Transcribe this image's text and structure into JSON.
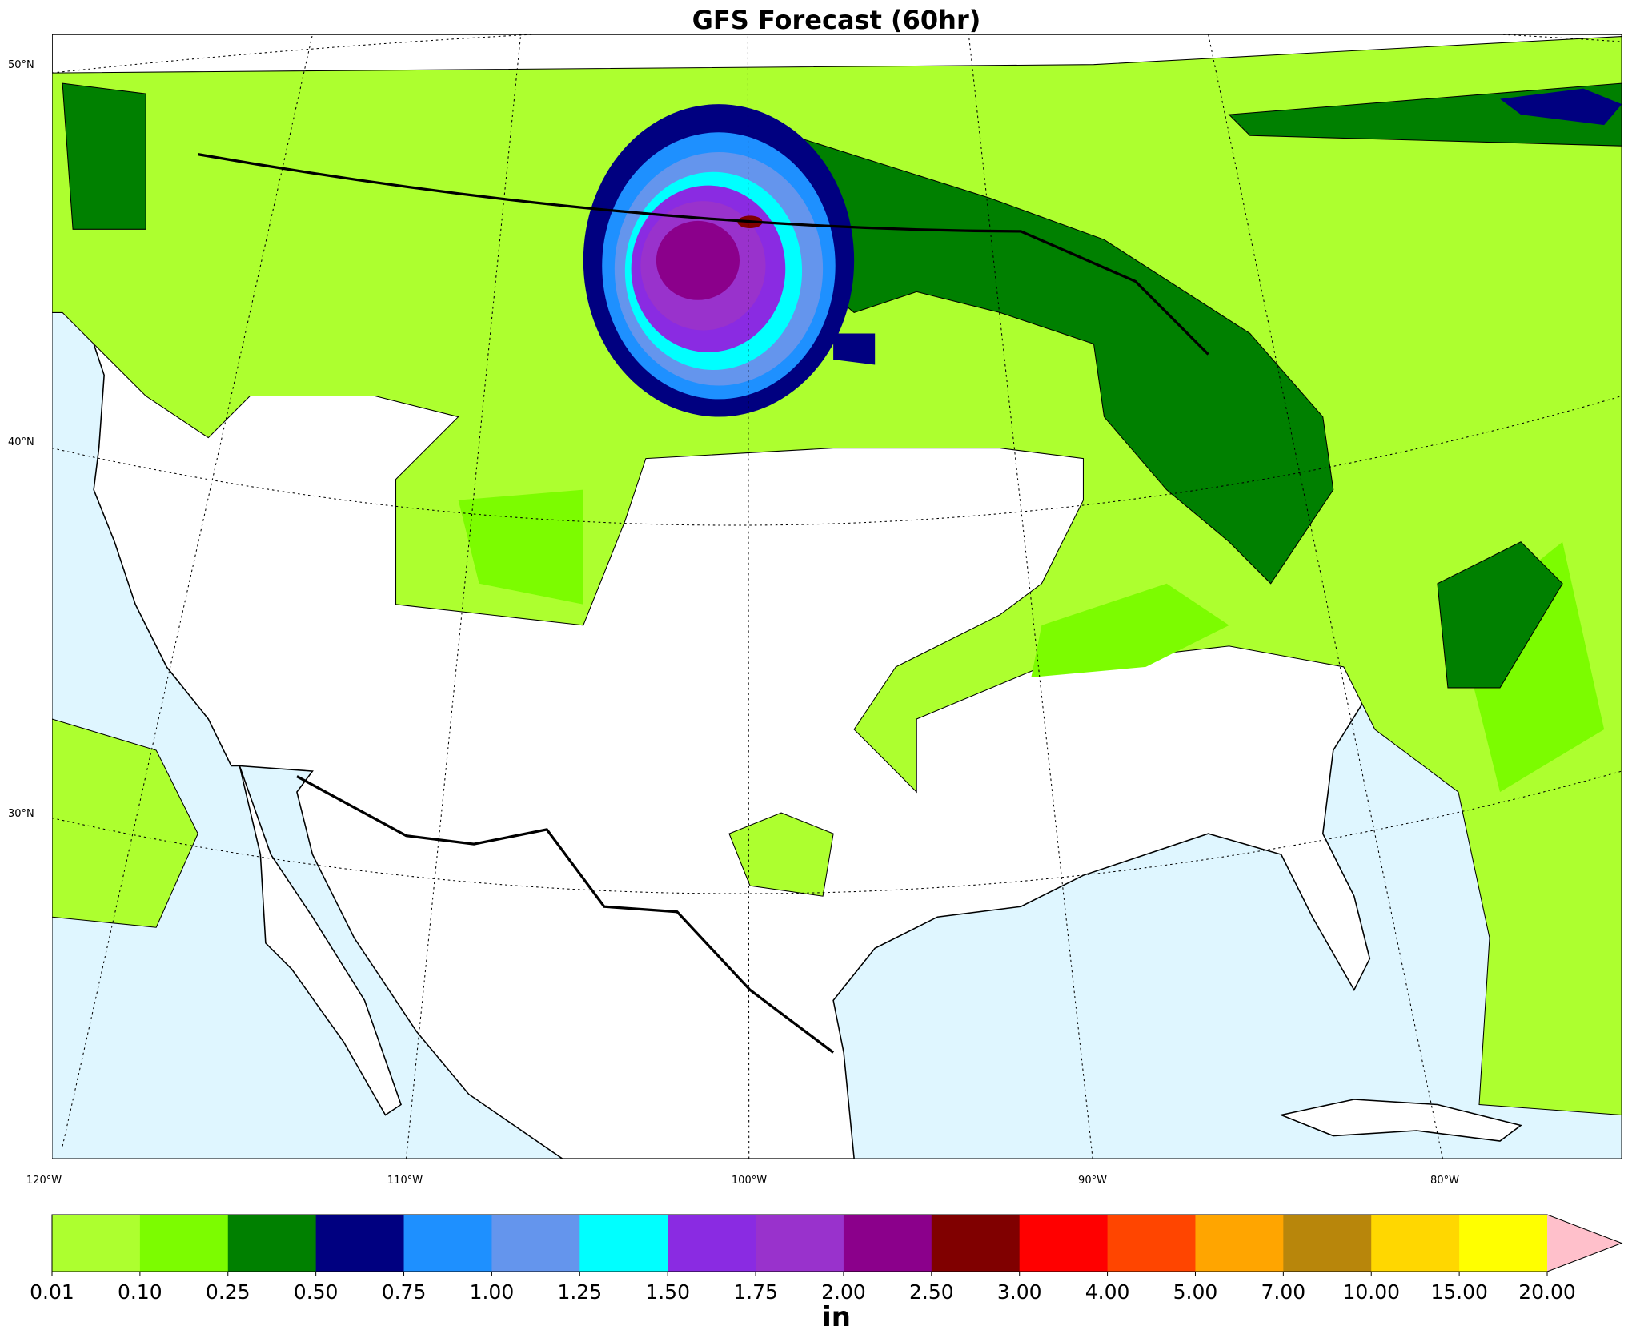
{
  "title": "GFS Forecast (60hr)",
  "map": {
    "lat_labels": [
      "50°N",
      "40°N",
      "30°N"
    ],
    "lon_labels": [
      "120°W",
      "110°W",
      "100°W",
      "90°W",
      "80°W"
    ]
  },
  "colorbar": {
    "label": "in",
    "ticks": [
      {
        "value": 0.01,
        "label": "0.01"
      },
      {
        "value": 0.1,
        "label": "0.10"
      },
      {
        "value": 0.25,
        "label": "0.25"
      },
      {
        "value": 0.5,
        "label": "0.50"
      },
      {
        "value": 0.75,
        "label": "0.75"
      },
      {
        "value": 1,
        "label": "1.00"
      },
      {
        "value": 1.25,
        "label": "1.25"
      },
      {
        "value": 1.5,
        "label": "1.50"
      },
      {
        "value": 1.75,
        "label": "1.75"
      },
      {
        "value": 2,
        "label": "2.00"
      },
      {
        "value": 2.5,
        "label": "2.50"
      },
      {
        "value": 3,
        "label": "3.00"
      },
      {
        "value": 4,
        "label": "4.00"
      },
      {
        "value": 5,
        "label": "5.00"
      },
      {
        "value": 7,
        "label": "7.00"
      },
      {
        "value": 10,
        "label": "10.00"
      },
      {
        "value": 15,
        "label": "15.00"
      },
      {
        "value": 20,
        "label": "20.00"
      }
    ],
    "colors": [
      "#adff2f",
      "#7cfc00",
      "#008000",
      "#000080",
      "#1e90ff",
      "#6495ed",
      "#00ffff",
      "#8a2be2",
      "#9932cc",
      "#8b008b",
      "#800000",
      "#ff0000",
      "#ff4500",
      "#ffa500",
      "#b8860b",
      "#ffd700",
      "#ffff00"
    ],
    "extend_color": "#ffc0cb"
  }
}
